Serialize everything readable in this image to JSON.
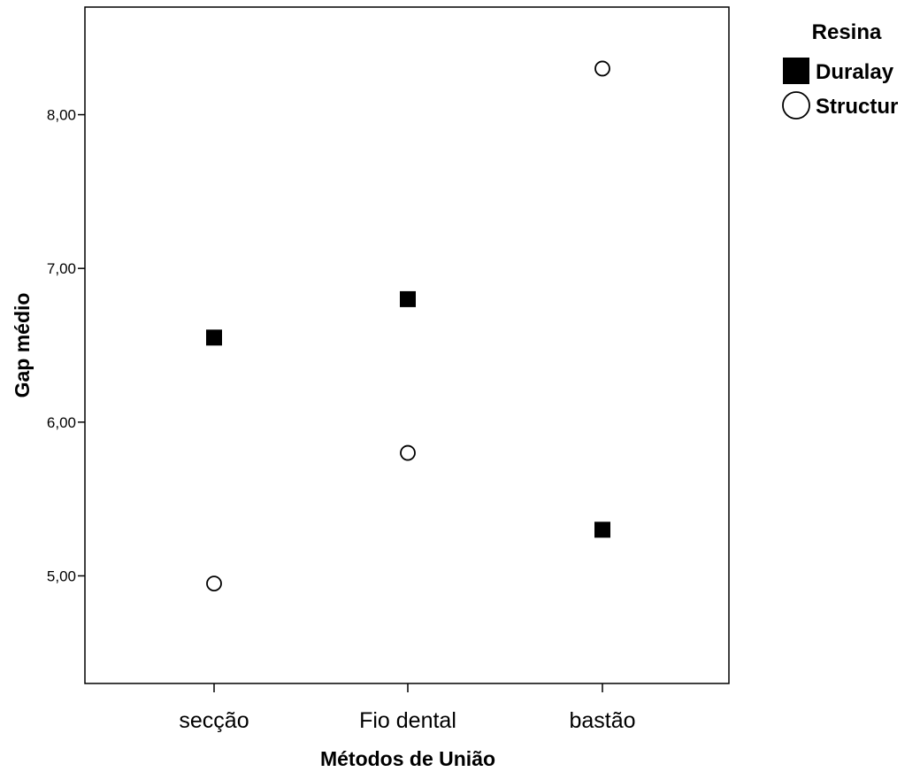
{
  "chart_data": {
    "type": "scatter",
    "categories": [
      "secção",
      "Fio dental",
      "bastão"
    ],
    "xlabel": "Métodos de União",
    "ylabel": "Gap médio",
    "ylim": [
      4.3,
      8.7
    ],
    "yticks": [
      5.0,
      6.0,
      7.0,
      8.0
    ],
    "ytick_labels": [
      "5,00",
      "6,00",
      "7,00",
      "8,00"
    ],
    "grid": false,
    "legend": {
      "title": "Resina",
      "position": "right"
    },
    "series": [
      {
        "name": "Duralay",
        "marker": "square-filled",
        "color": "#000000",
        "values": [
          6.55,
          6.8,
          5.3
        ]
      },
      {
        "name": "Structur",
        "marker": "circle-open",
        "color": "#000000",
        "values": [
          4.95,
          5.8,
          8.3
        ]
      }
    ]
  }
}
